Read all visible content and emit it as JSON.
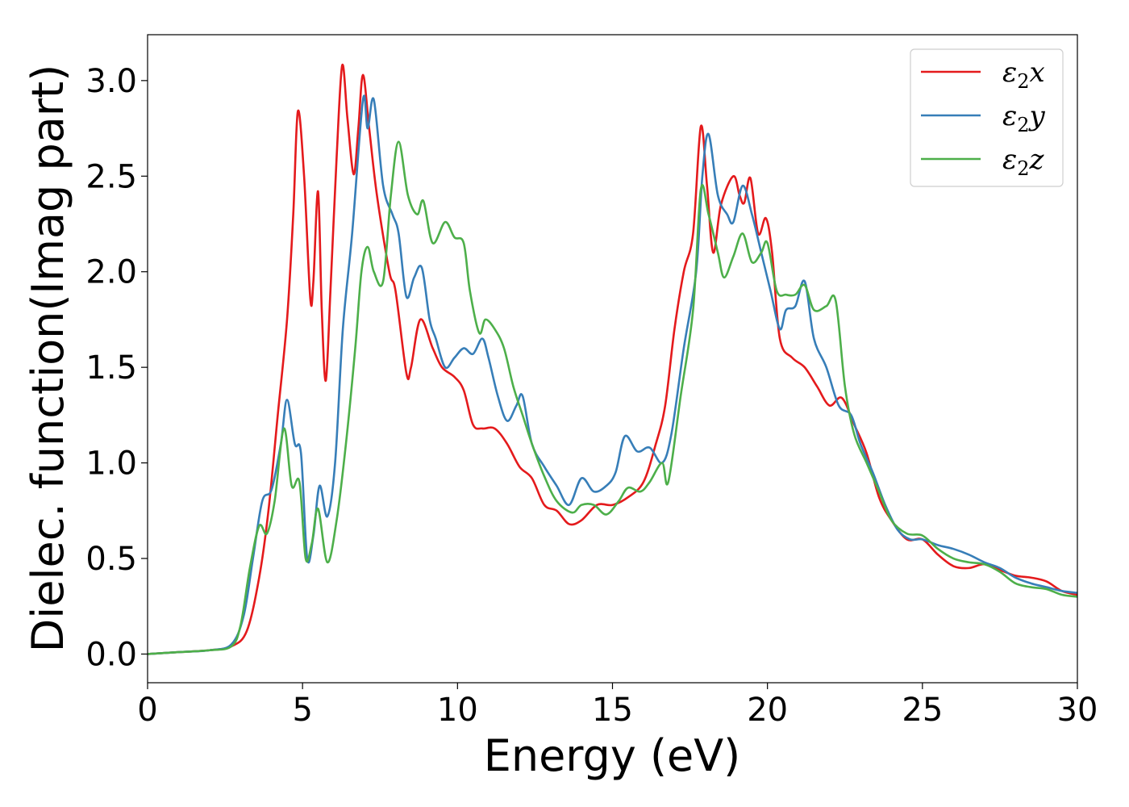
{
  "chart_data": {
    "type": "line",
    "title": "",
    "xlabel": "Energy (eV)",
    "ylabel": "Dielec. function(Imag part)",
    "xlim": [
      0,
      30
    ],
    "ylim": [
      -0.15,
      3.24
    ],
    "xticks": [
      0,
      5,
      10,
      15,
      20,
      25,
      30
    ],
    "yticks": [
      0.0,
      0.5,
      1.0,
      1.5,
      2.0,
      2.5,
      3.0
    ],
    "xtick_labels": [
      "0",
      "5",
      "10",
      "15",
      "20",
      "25",
      "30"
    ],
    "ytick_labels": [
      "0.0",
      "0.5",
      "1.0",
      "1.5",
      "2.0",
      "2.5",
      "3.0"
    ],
    "grid": false,
    "legend_position": "top-right",
    "series": [
      {
        "name": "ε2x",
        "legend_base": "ε",
        "legend_sub": "2",
        "legend_suffix": "x",
        "color": "#e41a1c",
        "points": [
          [
            0,
            0.0
          ],
          [
            1,
            0.01
          ],
          [
            2,
            0.02
          ],
          [
            2.7,
            0.04
          ],
          [
            3.2,
            0.12
          ],
          [
            3.6,
            0.4
          ],
          [
            3.9,
            0.75
          ],
          [
            4.2,
            1.25
          ],
          [
            4.5,
            1.75
          ],
          [
            4.7,
            2.3
          ],
          [
            4.85,
            2.84
          ],
          [
            5.05,
            2.5
          ],
          [
            5.25,
            1.86
          ],
          [
            5.35,
            1.95
          ],
          [
            5.5,
            2.42
          ],
          [
            5.62,
            1.8
          ],
          [
            5.75,
            1.43
          ],
          [
            5.9,
            1.9
          ],
          [
            6.1,
            2.6
          ],
          [
            6.28,
            3.08
          ],
          [
            6.45,
            2.8
          ],
          [
            6.65,
            2.51
          ],
          [
            6.8,
            2.75
          ],
          [
            6.95,
            3.03
          ],
          [
            7.15,
            2.75
          ],
          [
            7.4,
            2.4
          ],
          [
            7.8,
            2.0
          ],
          [
            8.0,
            1.9
          ],
          [
            8.35,
            1.47
          ],
          [
            8.5,
            1.5
          ],
          [
            8.8,
            1.75
          ],
          [
            9.2,
            1.6
          ],
          [
            9.5,
            1.5
          ],
          [
            9.9,
            1.45
          ],
          [
            10.2,
            1.38
          ],
          [
            10.5,
            1.2
          ],
          [
            10.8,
            1.18
          ],
          [
            11.2,
            1.18
          ],
          [
            11.6,
            1.1
          ],
          [
            12.0,
            0.98
          ],
          [
            12.4,
            0.92
          ],
          [
            12.8,
            0.78
          ],
          [
            13.2,
            0.75
          ],
          [
            13.6,
            0.68
          ],
          [
            14.0,
            0.7
          ],
          [
            14.5,
            0.78
          ],
          [
            15.0,
            0.78
          ],
          [
            15.5,
            0.82
          ],
          [
            16.0,
            0.9
          ],
          [
            16.4,
            1.1
          ],
          [
            16.7,
            1.3
          ],
          [
            17.0,
            1.7
          ],
          [
            17.3,
            2.0
          ],
          [
            17.6,
            2.2
          ],
          [
            17.85,
            2.76
          ],
          [
            18.05,
            2.45
          ],
          [
            18.25,
            2.1
          ],
          [
            18.5,
            2.35
          ],
          [
            18.9,
            2.5
          ],
          [
            19.1,
            2.4
          ],
          [
            19.25,
            2.36
          ],
          [
            19.45,
            2.49
          ],
          [
            19.7,
            2.2
          ],
          [
            19.95,
            2.28
          ],
          [
            20.15,
            2.1
          ],
          [
            20.4,
            1.65
          ],
          [
            20.8,
            1.55
          ],
          [
            21.2,
            1.5
          ],
          [
            21.6,
            1.4
          ],
          [
            22.0,
            1.3
          ],
          [
            22.4,
            1.34
          ],
          [
            22.8,
            1.2
          ],
          [
            23.2,
            1.05
          ],
          [
            23.6,
            0.82
          ],
          [
            24.0,
            0.7
          ],
          [
            24.5,
            0.6
          ],
          [
            25.0,
            0.6
          ],
          [
            25.5,
            0.52
          ],
          [
            26.0,
            0.46
          ],
          [
            26.5,
            0.45
          ],
          [
            27.0,
            0.47
          ],
          [
            27.5,
            0.44
          ],
          [
            28.0,
            0.41
          ],
          [
            28.5,
            0.4
          ],
          [
            29.0,
            0.38
          ],
          [
            29.5,
            0.33
          ],
          [
            30.0,
            0.31
          ]
        ]
      },
      {
        "name": "ε2y",
        "legend_base": "ε",
        "legend_sub": "2",
        "legend_suffix": "y",
        "color": "#377eb8",
        "points": [
          [
            0,
            0.0
          ],
          [
            1,
            0.01
          ],
          [
            2,
            0.02
          ],
          [
            2.7,
            0.05
          ],
          [
            3.1,
            0.2
          ],
          [
            3.4,
            0.5
          ],
          [
            3.7,
            0.8
          ],
          [
            4.0,
            0.86
          ],
          [
            4.3,
            1.1
          ],
          [
            4.5,
            1.33
          ],
          [
            4.75,
            1.1
          ],
          [
            4.95,
            1.05
          ],
          [
            5.15,
            0.5
          ],
          [
            5.35,
            0.62
          ],
          [
            5.55,
            0.88
          ],
          [
            5.8,
            0.72
          ],
          [
            6.05,
            1.0
          ],
          [
            6.3,
            1.7
          ],
          [
            6.6,
            2.2
          ],
          [
            6.95,
            2.9
          ],
          [
            7.1,
            2.75
          ],
          [
            7.3,
            2.9
          ],
          [
            7.6,
            2.45
          ],
          [
            7.9,
            2.3
          ],
          [
            8.1,
            2.2
          ],
          [
            8.35,
            1.87
          ],
          [
            8.6,
            1.97
          ],
          [
            8.85,
            2.02
          ],
          [
            9.1,
            1.75
          ],
          [
            9.3,
            1.65
          ],
          [
            9.6,
            1.5
          ],
          [
            9.9,
            1.55
          ],
          [
            10.2,
            1.6
          ],
          [
            10.5,
            1.57
          ],
          [
            10.8,
            1.65
          ],
          [
            11.0,
            1.55
          ],
          [
            11.3,
            1.35
          ],
          [
            11.6,
            1.22
          ],
          [
            11.9,
            1.3
          ],
          [
            12.1,
            1.35
          ],
          [
            12.4,
            1.1
          ],
          [
            12.8,
            0.98
          ],
          [
            13.2,
            0.88
          ],
          [
            13.6,
            0.78
          ],
          [
            14.0,
            0.92
          ],
          [
            14.4,
            0.85
          ],
          [
            14.8,
            0.88
          ],
          [
            15.1,
            0.95
          ],
          [
            15.4,
            1.14
          ],
          [
            15.8,
            1.06
          ],
          [
            16.2,
            1.08
          ],
          [
            16.6,
            1.0
          ],
          [
            16.9,
            1.15
          ],
          [
            17.3,
            1.6
          ],
          [
            17.7,
            2.0
          ],
          [
            17.9,
            2.5
          ],
          [
            18.1,
            2.72
          ],
          [
            18.4,
            2.4
          ],
          [
            18.7,
            2.3
          ],
          [
            18.9,
            2.26
          ],
          [
            19.2,
            2.45
          ],
          [
            19.5,
            2.3
          ],
          [
            19.8,
            2.1
          ],
          [
            20.1,
            1.9
          ],
          [
            20.4,
            1.7
          ],
          [
            20.6,
            1.8
          ],
          [
            20.9,
            1.82
          ],
          [
            21.2,
            1.95
          ],
          [
            21.5,
            1.65
          ],
          [
            21.9,
            1.5
          ],
          [
            22.3,
            1.3
          ],
          [
            22.7,
            1.25
          ],
          [
            23.0,
            1.1
          ],
          [
            23.4,
            0.95
          ],
          [
            23.8,
            0.78
          ],
          [
            24.2,
            0.65
          ],
          [
            24.6,
            0.6
          ],
          [
            25.0,
            0.6
          ],
          [
            25.5,
            0.57
          ],
          [
            26.0,
            0.55
          ],
          [
            26.5,
            0.52
          ],
          [
            27.0,
            0.48
          ],
          [
            27.5,
            0.45
          ],
          [
            28.0,
            0.4
          ],
          [
            28.5,
            0.37
          ],
          [
            29.0,
            0.35
          ],
          [
            29.5,
            0.33
          ],
          [
            30.0,
            0.32
          ]
        ]
      },
      {
        "name": "ε2z",
        "legend_base": "ε",
        "legend_sub": "2",
        "legend_suffix": "z",
        "color": "#4daf4a",
        "points": [
          [
            0,
            0.0
          ],
          [
            1,
            0.01
          ],
          [
            2,
            0.02
          ],
          [
            2.7,
            0.04
          ],
          [
            3.0,
            0.15
          ],
          [
            3.3,
            0.45
          ],
          [
            3.6,
            0.67
          ],
          [
            3.85,
            0.63
          ],
          [
            4.1,
            0.8
          ],
          [
            4.4,
            1.18
          ],
          [
            4.65,
            0.88
          ],
          [
            4.9,
            0.9
          ],
          [
            5.1,
            0.5
          ],
          [
            5.3,
            0.58
          ],
          [
            5.5,
            0.76
          ],
          [
            5.8,
            0.48
          ],
          [
            6.1,
            0.7
          ],
          [
            6.4,
            1.1
          ],
          [
            6.7,
            1.6
          ],
          [
            6.9,
            2.0
          ],
          [
            7.1,
            2.13
          ],
          [
            7.3,
            2.0
          ],
          [
            7.6,
            1.95
          ],
          [
            7.85,
            2.4
          ],
          [
            8.1,
            2.68
          ],
          [
            8.4,
            2.4
          ],
          [
            8.7,
            2.3
          ],
          [
            8.9,
            2.37
          ],
          [
            9.2,
            2.15
          ],
          [
            9.6,
            2.26
          ],
          [
            9.9,
            2.18
          ],
          [
            10.2,
            2.15
          ],
          [
            10.4,
            1.9
          ],
          [
            10.7,
            1.68
          ],
          [
            10.9,
            1.75
          ],
          [
            11.2,
            1.7
          ],
          [
            11.5,
            1.6
          ],
          [
            11.8,
            1.4
          ],
          [
            12.1,
            1.25
          ],
          [
            12.4,
            1.1
          ],
          [
            12.8,
            0.93
          ],
          [
            13.2,
            0.8
          ],
          [
            13.7,
            0.74
          ],
          [
            14.0,
            0.78
          ],
          [
            14.4,
            0.78
          ],
          [
            14.8,
            0.73
          ],
          [
            15.2,
            0.8
          ],
          [
            15.5,
            0.87
          ],
          [
            15.9,
            0.85
          ],
          [
            16.2,
            0.9
          ],
          [
            16.6,
            1.0
          ],
          [
            16.8,
            0.9
          ],
          [
            17.2,
            1.35
          ],
          [
            17.6,
            1.8
          ],
          [
            17.85,
            2.43
          ],
          [
            18.1,
            2.3
          ],
          [
            18.4,
            2.1
          ],
          [
            18.6,
            1.97
          ],
          [
            18.9,
            2.08
          ],
          [
            19.2,
            2.2
          ],
          [
            19.5,
            2.05
          ],
          [
            19.8,
            2.1
          ],
          [
            20.0,
            2.15
          ],
          [
            20.3,
            1.9
          ],
          [
            20.6,
            1.88
          ],
          [
            20.9,
            1.88
          ],
          [
            21.2,
            1.93
          ],
          [
            21.5,
            1.8
          ],
          [
            21.9,
            1.82
          ],
          [
            22.2,
            1.85
          ],
          [
            22.5,
            1.4
          ],
          [
            22.8,
            1.15
          ],
          [
            23.2,
            1.0
          ],
          [
            23.6,
            0.85
          ],
          [
            24.0,
            0.7
          ],
          [
            24.5,
            0.63
          ],
          [
            25.0,
            0.62
          ],
          [
            25.5,
            0.55
          ],
          [
            26.0,
            0.5
          ],
          [
            26.5,
            0.48
          ],
          [
            27.0,
            0.47
          ],
          [
            27.5,
            0.43
          ],
          [
            28.0,
            0.37
          ],
          [
            28.5,
            0.35
          ],
          [
            29.0,
            0.34
          ],
          [
            29.5,
            0.31
          ],
          [
            30.0,
            0.3
          ]
        ]
      }
    ]
  }
}
